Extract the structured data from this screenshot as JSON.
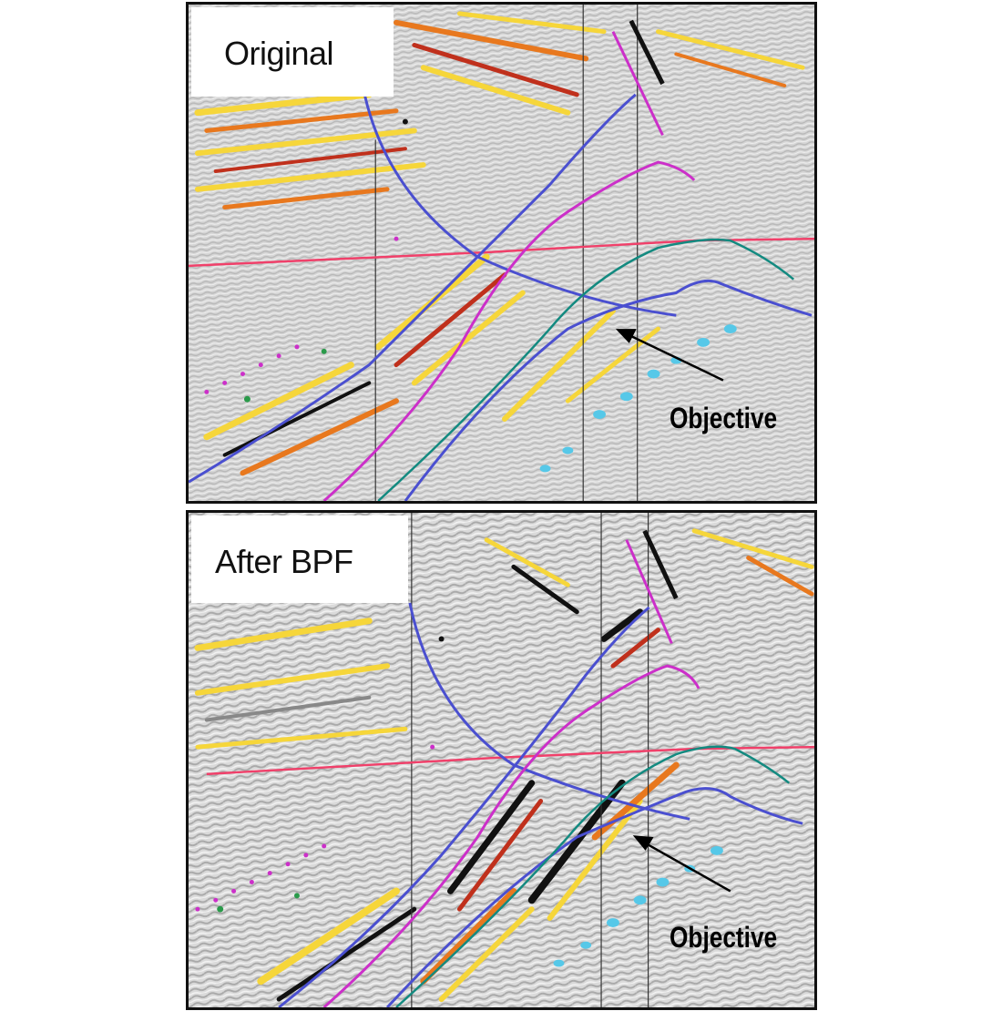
{
  "figure": {
    "panels": [
      {
        "label": "Original",
        "callout": "Objective"
      },
      {
        "label": "After BPF",
        "callout": "Objective"
      }
    ],
    "colors": {
      "frame": "#111111",
      "horizon_blue": "#4a4fd0",
      "horizon_magenta": "#cc2fc9",
      "horizon_teal": "#138a80",
      "horizon_red": "#f0406a",
      "fault_black": "#111111",
      "well_cyan": "#56c8e8",
      "amplitude_yellow": "#f6d63a",
      "amplitude_orange": "#e8781e",
      "amplitude_red": "#c0301c"
    }
  }
}
